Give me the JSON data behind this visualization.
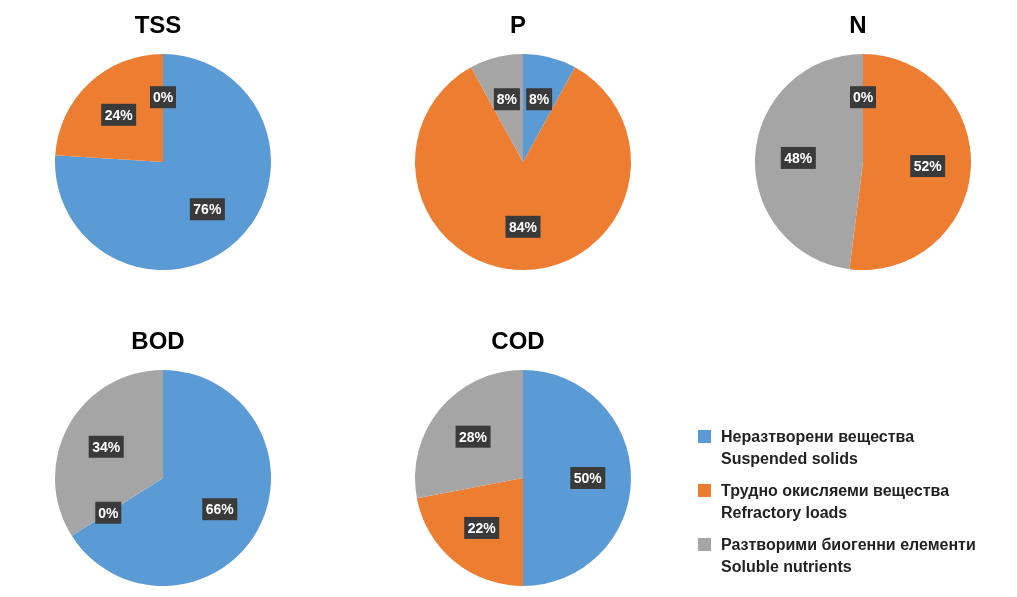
{
  "chart_data": [
    {
      "type": "pie",
      "title": "TSS",
      "categories": [
        null,
        null,
        null
      ],
      "values": [
        76,
        24,
        0
      ],
      "value_labels": [
        "76%",
        "24%",
        "0%"
      ],
      "colors": [
        "#5b9bd5",
        "#ed7d31",
        "#a5a5a5"
      ],
      "legend": false
    },
    {
      "type": "pie",
      "title": "P",
      "categories": [
        null,
        null,
        null
      ],
      "values": [
        8,
        84,
        8
      ],
      "value_labels": [
        "8%",
        "84%",
        "8%"
      ],
      "colors": [
        "#5b9bd5",
        "#ed7d31",
        "#a5a5a5"
      ],
      "legend": false
    },
    {
      "type": "pie",
      "title": "N",
      "categories": [
        null,
        null,
        null
      ],
      "values": [
        0,
        52,
        48
      ],
      "value_labels": [
        "0%",
        "52%",
        "48%"
      ],
      "colors": [
        "#5b9bd5",
        "#ed7d31",
        "#a5a5a5"
      ],
      "legend": false
    },
    {
      "type": "pie",
      "title": "BOD",
      "categories": [
        null,
        null,
        null
      ],
      "values": [
        66,
        0,
        34
      ],
      "value_labels": [
        "66%",
        "0%",
        "34%"
      ],
      "colors": [
        "#5b9bd5",
        "#ed7d31",
        "#a5a5a5"
      ],
      "legend": false
    },
    {
      "type": "pie",
      "title": "COD",
      "categories": [
        "Неразтворени вещества\nSuspended solids",
        "Трудно окисляеми вещества\nRefractory loads",
        "Разтворими биогенни елементи\nSoluble nutrients"
      ],
      "values": [
        50,
        22,
        28
      ],
      "value_labels": [
        "50%",
        "22%",
        "28%"
      ],
      "colors": [
        "#5b9bd5",
        "#ed7d31",
        "#a5a5a5"
      ],
      "legend": "right"
    }
  ]
}
